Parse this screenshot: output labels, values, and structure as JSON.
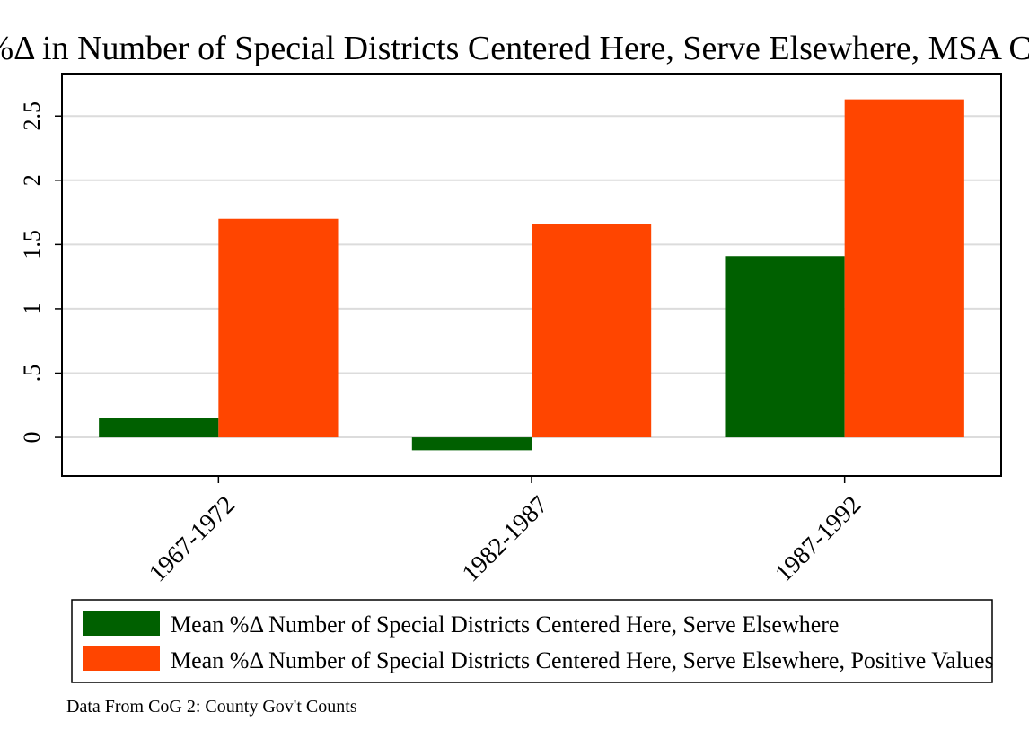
{
  "chart_data": {
    "type": "bar",
    "title": "Mean %Δ in Number of Special Districts Centered Here, Serve Elsewhere, MSA Counties",
    "categories": [
      "1967-1972",
      "1982-1987",
      "1987-1992"
    ],
    "series": [
      {
        "name": "Mean %Δ Number of Special Districts Centered Here, Serve Elsewhere",
        "color": "#006000",
        "values": [
          0.15,
          -0.1,
          1.41
        ]
      },
      {
        "name": "Mean %Δ Number of Special Districts Centered Here, Serve Elsewhere, Positive Values",
        "color": "#ff4500",
        "values": [
          1.7,
          1.66,
          2.63
        ]
      }
    ],
    "y_ticks": [
      0,
      0.5,
      1,
      1.5,
      2,
      2.5
    ],
    "y_tick_labels": [
      "0",
      ".5",
      "1",
      "1.5",
      "2",
      "2.5"
    ],
    "ylim": [
      -0.3,
      2.83
    ],
    "grid": true,
    "legend_position": "bottom",
    "note": "Data From CoG 2: County Gov't Counts",
    "xlabel": "",
    "ylabel": ""
  }
}
